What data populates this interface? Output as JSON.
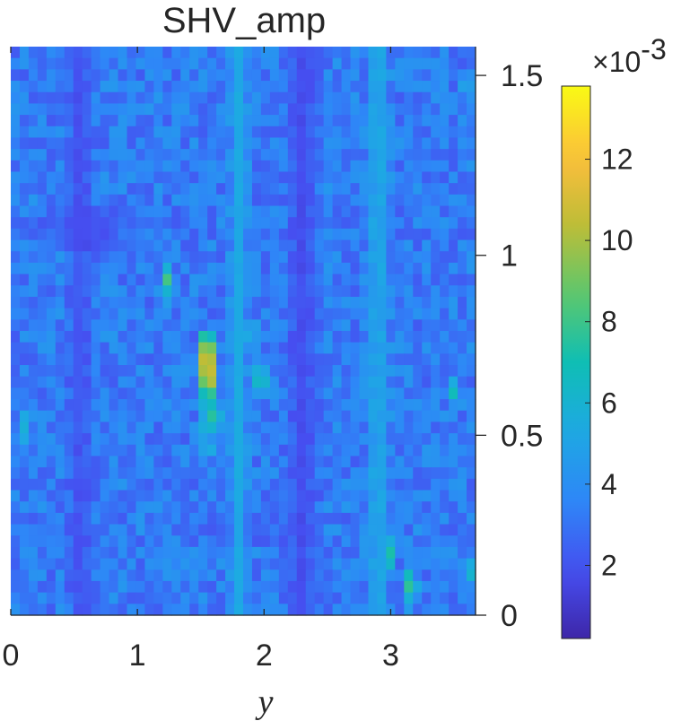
{
  "chart_data": {
    "type": "heatmap",
    "title": "SHV_amp",
    "xlabel": "y",
    "ylabel": "",
    "x_range": [
      0,
      3.67
    ],
    "y_range": [
      0,
      1.58
    ],
    "x_ticks": [
      0,
      1,
      2,
      3
    ],
    "x_tick_labels": [
      "0",
      "1",
      "2",
      "3"
    ],
    "y_ticks": [
      0,
      0.5,
      1,
      1.5
    ],
    "y_tick_labels": [
      "0",
      "0.5",
      "1",
      "1.5"
    ],
    "y_axis_side": "right",
    "grid": false,
    "colormap": "parula",
    "colorbar": {
      "range": [
        0.0002,
        0.0138
      ],
      "ticks": [
        2,
        4,
        6,
        8,
        10,
        12
      ],
      "tick_labels": [
        "2",
        "4",
        "6",
        "8",
        "10",
        "12"
      ],
      "multiplier_base": "×10",
      "multiplier_exponent": "-3",
      "placement": "right"
    },
    "grid_size": {
      "cols": 52,
      "rows": 50
    },
    "background_level": 0.0033,
    "features": [
      {
        "kind": "band",
        "x": 0.55,
        "y_start": 0.0,
        "y_end": 1.58,
        "half_width": 0.14,
        "value": 0.0015
      },
      {
        "kind": "band",
        "x": 2.3,
        "y_start": 0.0,
        "y_end": 1.58,
        "half_width": 0.18,
        "value": 0.0014
      },
      {
        "kind": "band",
        "x": 0.6,
        "y_start": 1.0,
        "y_end": 1.15,
        "half_width": 0.55,
        "value": 0.0016
      },
      {
        "kind": "band",
        "x": 1.85,
        "y_start": 0.2,
        "y_end": 0.3,
        "half_width": 0.4,
        "value": 0.0018
      },
      {
        "kind": "band",
        "x": 1.8,
        "y_start": 0.0,
        "y_end": 1.58,
        "half_width": 0.1,
        "value": 0.0058
      },
      {
        "kind": "band",
        "x": 2.9,
        "y_start": 0.0,
        "y_end": 1.58,
        "half_width": 0.12,
        "value": 0.006
      },
      {
        "kind": "band",
        "x": 1.55,
        "y_start": 0.45,
        "y_end": 0.8,
        "half_width": 0.06,
        "value": 0.0085
      },
      {
        "kind": "spot",
        "x": 1.55,
        "y": 0.71,
        "radius": 0.07,
        "value": 0.0128
      },
      {
        "kind": "spot",
        "x": 1.57,
        "y": 0.66,
        "radius": 0.06,
        "value": 0.0112
      },
      {
        "kind": "spot",
        "x": 1.62,
        "y": 0.55,
        "radius": 0.05,
        "value": 0.0092
      },
      {
        "kind": "spot",
        "x": 1.24,
        "y": 0.93,
        "radius": 0.05,
        "value": 0.0085
      },
      {
        "kind": "spot",
        "x": 1.97,
        "y": 0.66,
        "radius": 0.06,
        "value": 0.0078
      },
      {
        "kind": "spot",
        "x": 1.91,
        "y": 0.77,
        "radius": 0.04,
        "value": 0.0072
      },
      {
        "kind": "spot",
        "x": 3.15,
        "y": 0.08,
        "radius": 0.06,
        "value": 0.0082
      },
      {
        "kind": "spot",
        "x": 3.0,
        "y": 0.17,
        "radius": 0.05,
        "value": 0.0074
      },
      {
        "kind": "spot",
        "x": 3.5,
        "y": 0.62,
        "radius": 0.04,
        "value": 0.0072
      },
      {
        "kind": "spot",
        "x": 3.62,
        "y": 0.12,
        "radius": 0.04,
        "value": 0.007
      },
      {
        "kind": "spot",
        "x": 3.6,
        "y": 1.48,
        "radius": 0.04,
        "value": 0.0068
      },
      {
        "kind": "spot",
        "x": 0.12,
        "y": 0.52,
        "radius": 0.05,
        "value": 0.0064
      }
    ],
    "note_values_units": "amplitude"
  }
}
